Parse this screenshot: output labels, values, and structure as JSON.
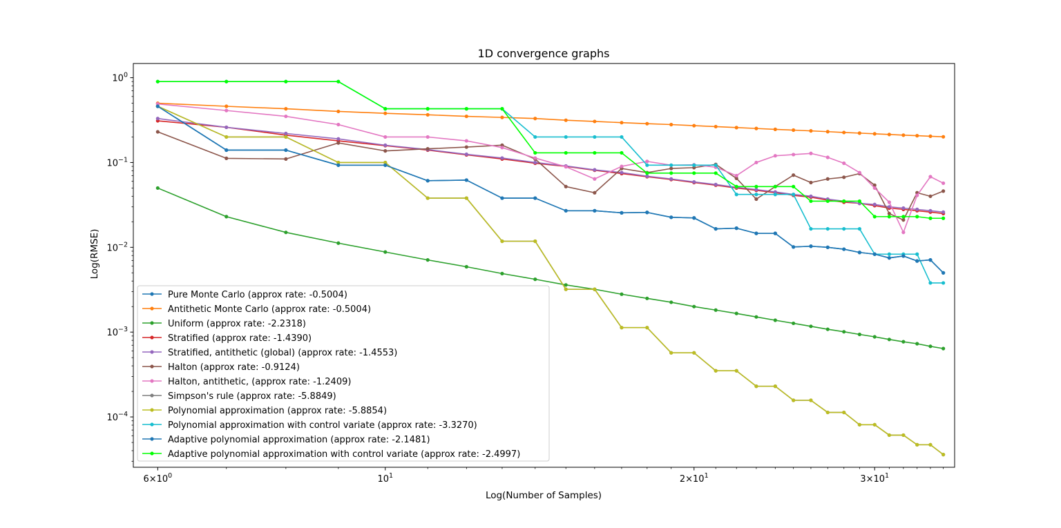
{
  "chart_data": {
    "type": "line",
    "title": "1D convergence graphs",
    "xlabel": "Log(Number of Samples)",
    "ylabel": "Log(RMSE)",
    "xscale": "log",
    "yscale": "log",
    "xlim": [
      5.68,
      35.9
    ],
    "ylim": [
      2.55e-05,
      1.47
    ],
    "grid": false,
    "legend_position": "lower-left",
    "x": [
      6,
      7,
      8,
      9,
      10,
      11,
      12,
      13,
      14,
      15,
      16,
      17,
      18,
      19,
      20,
      21,
      22,
      23,
      24,
      25,
      26,
      27,
      28,
      29,
      30,
      31,
      32,
      33,
      34,
      35
    ],
    "x_ticks": [
      {
        "value": 6,
        "base": "6",
        "mult": "×10",
        "exp": "0"
      },
      {
        "value": 10,
        "base": "10",
        "mult": "",
        "exp": "1"
      },
      {
        "value": 20,
        "base": "2",
        "mult": "×10",
        "exp": "1"
      },
      {
        "value": 30,
        "base": "3",
        "mult": "×10",
        "exp": "1"
      }
    ],
    "y_ticks": [
      {
        "value": 1,
        "base": "10",
        "exp": "0"
      },
      {
        "value": 0.1,
        "base": "10",
        "exp": "−1"
      },
      {
        "value": 0.01,
        "base": "10",
        "exp": "−2"
      },
      {
        "value": 0.001,
        "base": "10",
        "exp": "−3"
      },
      {
        "value": 0.0001,
        "base": "10",
        "exp": "−4"
      }
    ],
    "series": [
      {
        "name": "Pure Monte Carlo (approx rate: -0.5004)",
        "color": "#1f77b4",
        "values": [
          0.46,
          0.14,
          0.14,
          0.093,
          0.093,
          0.061,
          0.062,
          0.038,
          0.038,
          0.027,
          0.027,
          0.0255,
          0.0258,
          0.0226,
          0.0222,
          0.0165,
          0.0168,
          0.0146,
          0.0146,
          0.0101,
          0.0103,
          0.01,
          0.0095,
          0.0087,
          0.0083,
          0.0075,
          0.0079,
          0.0069,
          0.0071,
          0.005
        ]
      },
      {
        "name": "Antithetic Monte Carlo (approx rate: -0.5004)",
        "color": "#ff7f0e",
        "values": [
          0.5,
          0.46,
          0.43,
          0.4,
          0.38,
          0.365,
          0.35,
          0.34,
          0.33,
          0.315,
          0.305,
          0.295,
          0.287,
          0.28,
          0.272,
          0.265,
          0.258,
          0.252,
          0.246,
          0.241,
          0.236,
          0.231,
          0.226,
          0.222,
          0.218,
          0.214,
          0.21,
          0.207,
          0.204,
          0.201
        ]
      },
      {
        "name": "Uniform (approx rate: -2.2318)",
        "color": "#2ca02c",
        "values": [
          0.05,
          0.023,
          0.015,
          0.0112,
          0.0088,
          0.0071,
          0.0059,
          0.0049,
          0.0042,
          0.0036,
          0.0032,
          0.0028,
          0.0025,
          0.00225,
          0.002,
          0.00182,
          0.00166,
          0.00151,
          0.00138,
          0.00127,
          0.00117,
          0.00108,
          0.00101,
          0.00094,
          0.00088,
          0.00082,
          0.00077,
          0.00073,
          0.00068,
          0.00064
        ]
      },
      {
        "name": "Stratified (approx rate: -1.4390)",
        "color": "#d62728",
        "values": [
          0.31,
          0.26,
          0.21,
          0.18,
          0.158,
          0.14,
          0.123,
          0.11,
          0.098,
          0.09,
          0.081,
          0.074,
          0.068,
          0.063,
          0.058,
          0.054,
          0.05,
          0.047,
          0.044,
          0.041,
          0.039,
          0.036,
          0.034,
          0.033,
          0.031,
          0.029,
          0.028,
          0.027,
          0.026,
          0.025
        ]
      },
      {
        "name": "Stratified, antithetic (global) (approx rate: -1.4553)",
        "color": "#9467bd",
        "values": [
          0.33,
          0.26,
          0.22,
          0.19,
          0.16,
          0.142,
          0.125,
          0.113,
          0.1,
          0.091,
          0.082,
          0.076,
          0.069,
          0.064,
          0.059,
          0.055,
          0.051,
          0.048,
          0.045,
          0.042,
          0.04,
          0.037,
          0.035,
          0.033,
          0.032,
          0.03,
          0.029,
          0.028,
          0.027,
          0.026
        ]
      },
      {
        "name": "Halton (approx rate: -0.9124)",
        "color": "#8c564b",
        "values": [
          0.23,
          0.112,
          0.11,
          0.17,
          0.137,
          0.145,
          0.152,
          0.16,
          0.11,
          0.052,
          0.044,
          0.085,
          0.076,
          0.085,
          0.087,
          0.095,
          0.065,
          0.037,
          0.052,
          0.071,
          0.058,
          0.064,
          0.067,
          0.074,
          0.054,
          0.025,
          0.021,
          0.044,
          0.04,
          0.046
        ]
      },
      {
        "name": "Halton, antithetic, (approx rate: -1.2409)",
        "color": "#e377c2",
        "values": [
          0.49,
          0.41,
          0.35,
          0.28,
          0.2,
          0.2,
          0.18,
          0.15,
          0.113,
          0.089,
          0.064,
          0.09,
          0.103,
          0.093,
          0.094,
          0.088,
          0.07,
          0.1,
          0.12,
          0.124,
          0.128,
          0.115,
          0.098,
          0.076,
          0.05,
          0.034,
          0.015,
          0.041,
          0.068,
          0.057
        ]
      },
      {
        "name": "Simpson's rule (approx rate: -5.8849)",
        "color": "#7f7f7f",
        "values": [
          0.46,
          0.2,
          0.2,
          0.1,
          0.1,
          0.038,
          0.038,
          0.0118,
          0.0118,
          0.0032,
          0.0032,
          0.00113,
          0.00113,
          0.00057,
          0.00057,
          0.00035,
          0.00035,
          0.00023,
          0.00023,
          0.000157,
          0.000157,
          0.000113,
          0.000113,
          8.1e-05,
          8.1e-05,
          6.1e-05,
          6.1e-05,
          4.7e-05,
          4.7e-05,
          3.6e-05
        ]
      },
      {
        "name": "Polynomial approximation (approx rate: -5.8854)",
        "color": "#bcbd22",
        "values": [
          0.46,
          0.2,
          0.2,
          0.1,
          0.1,
          0.038,
          0.038,
          0.0118,
          0.0118,
          0.0032,
          0.0032,
          0.00113,
          0.00113,
          0.00057,
          0.00057,
          0.00035,
          0.00035,
          0.00023,
          0.00023,
          0.000157,
          0.000157,
          0.000113,
          0.000113,
          8.1e-05,
          8.1e-05,
          6.1e-05,
          6.1e-05,
          4.7e-05,
          4.7e-05,
          3.6e-05
        ]
      },
      {
        "name": "Polynomial approximation with control variate (approx rate: -3.3270)",
        "color": "#17becf",
        "values": [
          0.9,
          0.9,
          0.9,
          0.9,
          0.43,
          0.43,
          0.43,
          0.43,
          0.2,
          0.2,
          0.2,
          0.2,
          0.093,
          0.093,
          0.093,
          0.093,
          0.042,
          0.042,
          0.042,
          0.042,
          0.0165,
          0.0165,
          0.0165,
          0.0165,
          0.0083,
          0.0083,
          0.0083,
          0.0083,
          0.0038,
          0.0038
        ]
      },
      {
        "name": "Adaptive polynomial approximation (approx rate: -2.1481)",
        "color": "#1f77b4",
        "values": [
          0.46,
          0.14,
          0.14,
          0.093,
          0.093,
          0.061,
          0.062,
          0.038,
          0.038,
          0.027,
          0.027,
          0.0255,
          0.0258,
          0.0226,
          0.0222,
          0.0165,
          0.0168,
          0.0146,
          0.0146,
          0.0101,
          0.0103,
          0.01,
          0.0095,
          0.0087,
          0.0083,
          0.0075,
          0.0079,
          0.0069,
          0.0071,
          0.005
        ]
      },
      {
        "name": "Adaptive polynomial approximation with control variate (approx rate: -2.4997)",
        "color": "#00ff00",
        "values": [
          0.9,
          0.9,
          0.9,
          0.9,
          0.43,
          0.43,
          0.43,
          0.43,
          0.13,
          0.13,
          0.13,
          0.13,
          0.075,
          0.075,
          0.075,
          0.075,
          0.052,
          0.052,
          0.052,
          0.052,
          0.035,
          0.035,
          0.035,
          0.035,
          0.023,
          0.023,
          0.023,
          0.023,
          0.022,
          0.022
        ]
      }
    ]
  }
}
